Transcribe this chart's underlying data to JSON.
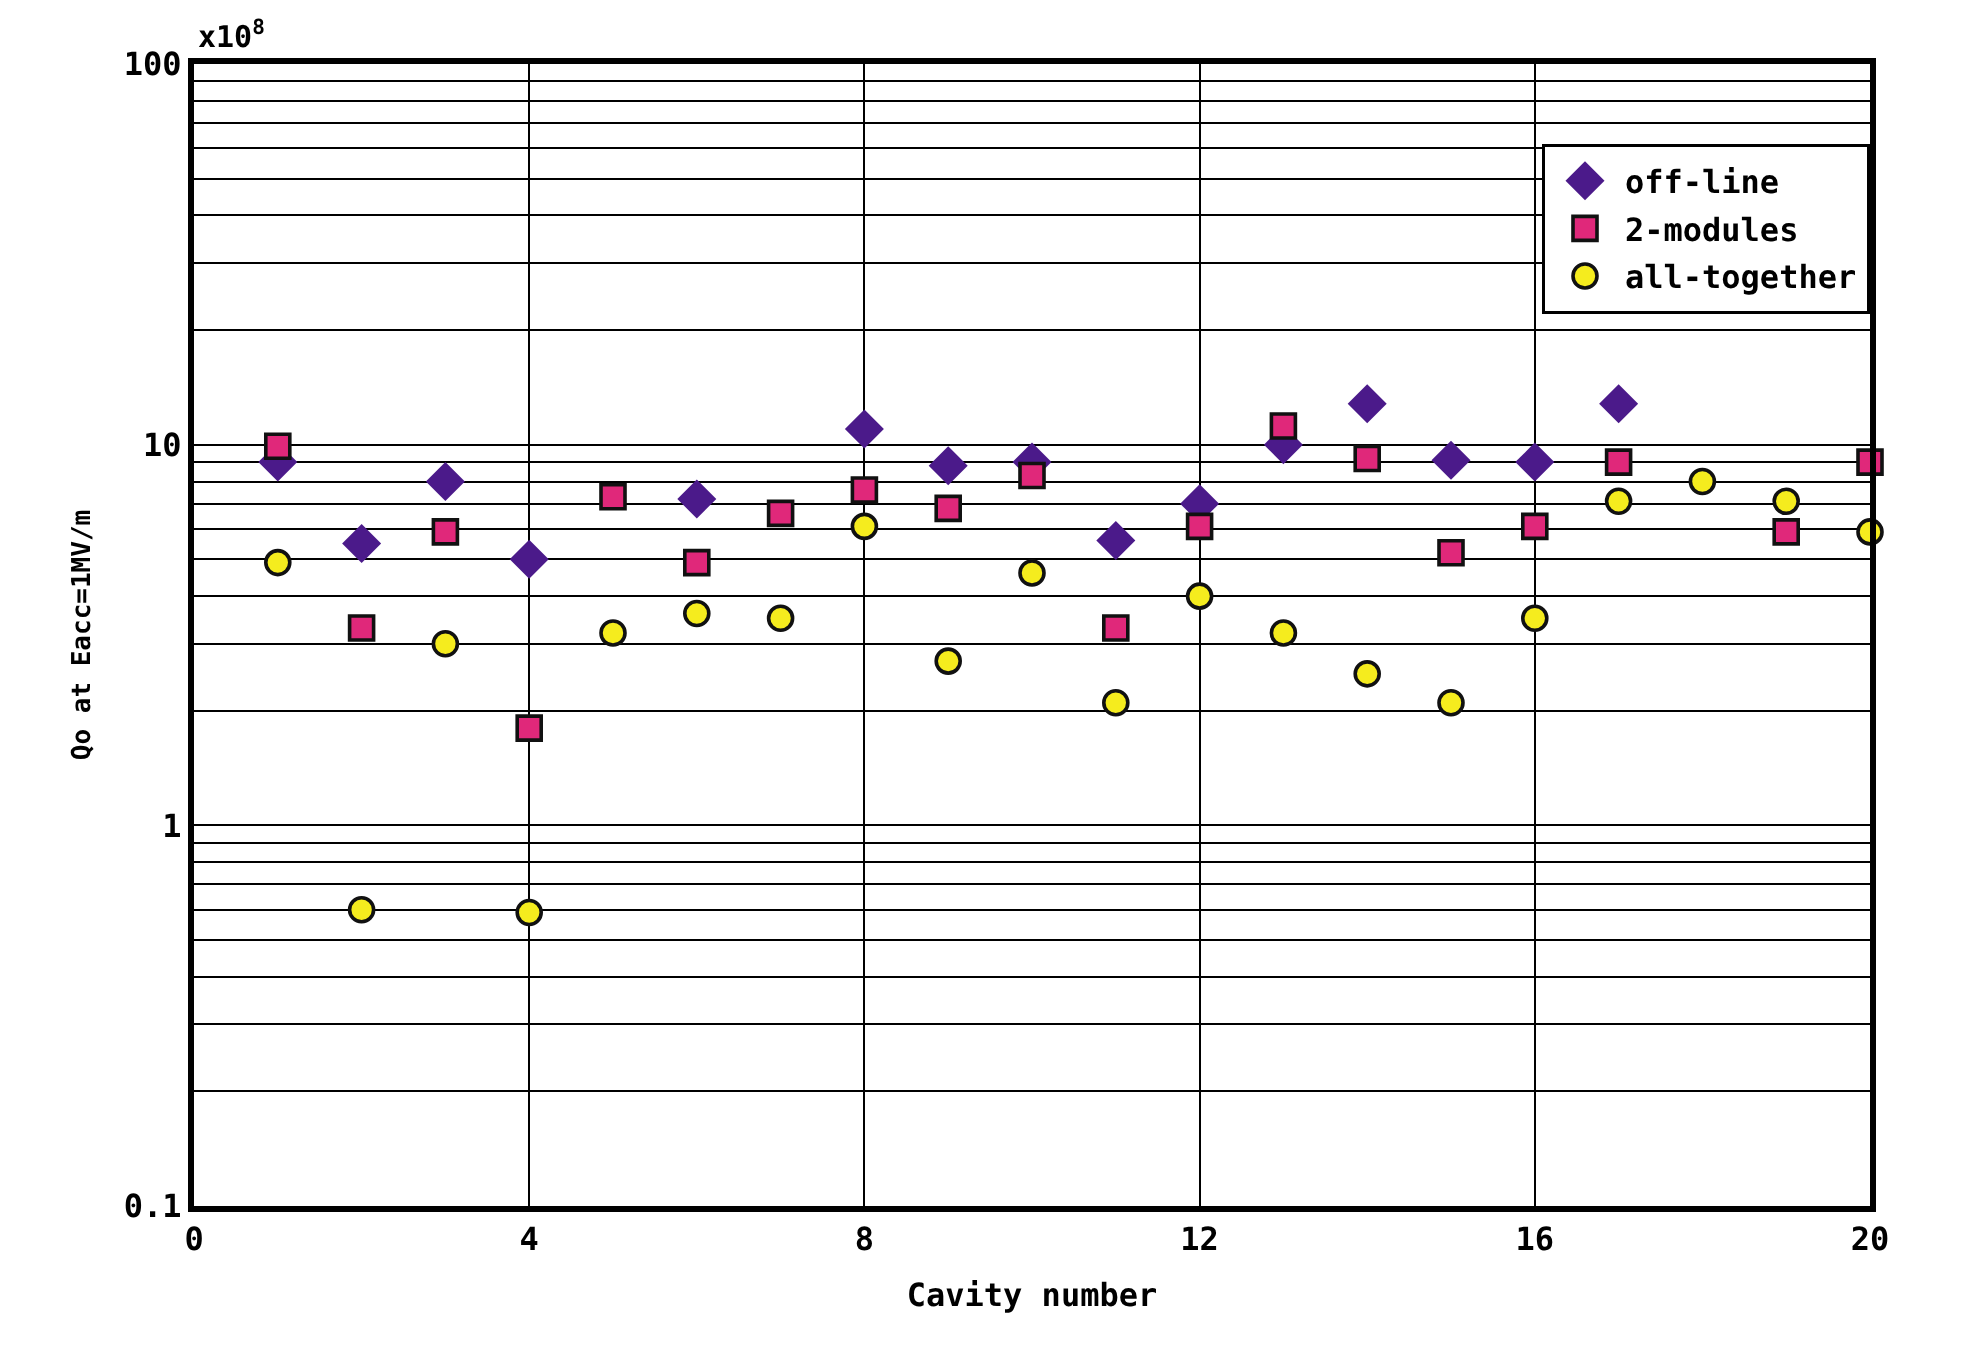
{
  "chart_data": {
    "type": "scatter",
    "xlabel": "Cavity number",
    "ylabel": "Qo at Eacc=1MV/m",
    "annotations": [
      "x10$^{8}$"
    ],
    "x": [
      1,
      2,
      3,
      4,
      5,
      6,
      7,
      8,
      9,
      10,
      11,
      12,
      13,
      14,
      15,
      16,
      17,
      18,
      19,
      20
    ],
    "series": [
      {
        "name": "off-line",
        "color": "#4b1a8a",
        "marker": "diamond",
        "values": [
          9.0,
          5.5,
          8.0,
          5.0,
          null,
          7.2,
          null,
          11,
          8.8,
          9.0,
          5.6,
          7.0,
          10,
          12.8,
          9.1,
          9.0,
          12.8,
          null,
          null,
          null
        ]
      },
      {
        "name": "2-modules",
        "color": "#e0287a",
        "marker": "square",
        "values": [
          9.9,
          3.3,
          5.9,
          1.8,
          7.3,
          4.9,
          6.6,
          7.6,
          6.8,
          8.3,
          3.3,
          6.1,
          11.2,
          9.2,
          5.2,
          6.1,
          9.0,
          null,
          5.9,
          9.0
        ]
      },
      {
        "name": "all-together",
        "color": "#f5ec1e",
        "marker": "circle",
        "values": [
          4.9,
          0.6,
          3.0,
          0.59,
          3.2,
          3.6,
          3.5,
          6.1,
          2.7,
          4.6,
          2.1,
          4.0,
          3.2,
          2.5,
          2.1,
          3.5,
          7.1,
          8.0,
          7.1,
          5.9
        ]
      }
    ],
    "log": true,
    "xlim": [
      0,
      20
    ],
    "xticks": [
      0,
      4,
      8,
      12,
      16,
      20
    ],
    "ylim": [
      0.1,
      100
    ],
    "yticks": [
      0.1,
      {
        "value": 0.2,
        "label": null
      },
      {
        "value": 0.3,
        "label": null
      },
      {
        "value": 0.4,
        "label": null
      },
      {
        "value": 0.5,
        "label": null
      },
      {
        "value": 0.6,
        "label": null
      },
      {
        "value": 0.7,
        "label": null
      },
      {
        "value": 0.8,
        "label": null
      },
      {
        "value": 0.9,
        "label": null
      },
      1,
      {
        "value": 2,
        "label": null
      },
      {
        "value": 3,
        "label": null
      },
      {
        "value": 4,
        "label": null
      },
      {
        "value": 5,
        "label": null
      },
      {
        "value": 6,
        "label": null
      },
      {
        "value": 7,
        "label": null
      },
      {
        "value": 8,
        "label": null
      },
      {
        "value": 9,
        "label": null
      },
      10,
      {
        "value": 20,
        "label": null
      },
      {
        "value": 30,
        "label": null
      },
      {
        "value": 40,
        "label": null
      },
      {
        "value": 50,
        "label": null
      },
      {
        "value": 60,
        "label": null
      },
      {
        "value": 70,
        "label": null
      },
      {
        "value": 80,
        "label": null
      },
      {
        "value": 90,
        "label": null
      },
      100
    ],
    "grid": true,
    "legend": "top right"
  }
}
